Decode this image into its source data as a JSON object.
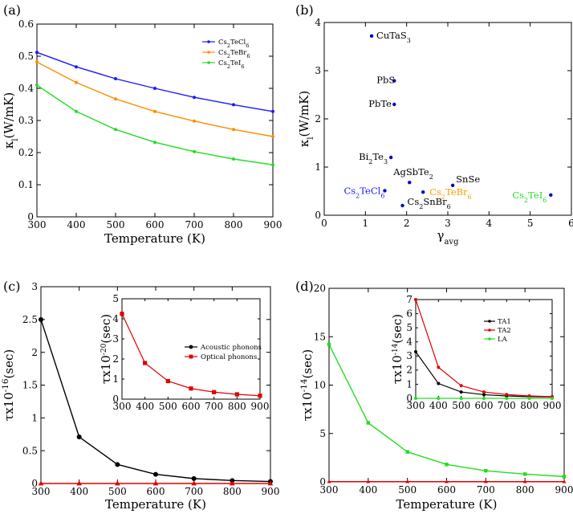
{
  "chart_data": [
    {
      "panel_label": "(a)",
      "type": "line",
      "xlabel": "Temperature (K)",
      "ylabel_main": "κ",
      "ylabel_sub": "l",
      "ylabel_rest": "(W/mK)",
      "xlim": [
        300,
        900
      ],
      "ylim": [
        0,
        0.6
      ],
      "xticks": [
        300,
        400,
        500,
        600,
        700,
        800,
        900
      ],
      "yticks": [
        0,
        0.1,
        0.2,
        0.3,
        0.4,
        0.5,
        0.6
      ],
      "x": [
        300,
        400,
        500,
        600,
        700,
        800,
        900
      ],
      "series": [
        {
          "name_main": "Cs",
          "name_sub1": "2",
          "name_mid": "TeCl",
          "name_sub2": "6",
          "color": "#1a1aff",
          "values": [
            0.512,
            0.467,
            0.43,
            0.4,
            0.372,
            0.349,
            0.328
          ]
        },
        {
          "name_main": "Cs",
          "name_sub1": "2",
          "name_mid": "TeBr",
          "name_sub2": "6",
          "color": "#ff8c00",
          "values": [
            0.482,
            0.418,
            0.367,
            0.328,
            0.298,
            0.272,
            0.25
          ]
        },
        {
          "name_main": "Cs",
          "name_sub1": "2",
          "name_mid": "TeI",
          "name_sub2": "6",
          "color": "#22dd22",
          "values": [
            0.41,
            0.328,
            0.272,
            0.232,
            0.203,
            0.18,
            0.162
          ]
        }
      ]
    },
    {
      "panel_label": "(b)",
      "type": "scatter",
      "xlabel_main": "γ",
      "xlabel_sub": "avg",
      "ylabel_main": "κ",
      "ylabel_sub": "l",
      "ylabel_rest": "(W/mK)",
      "xlim": [
        0,
        6
      ],
      "ylim": [
        0,
        4
      ],
      "xticks": [
        0,
        1,
        2,
        3,
        4,
        5,
        6
      ],
      "yticks": [
        0,
        1,
        2,
        3,
        4
      ],
      "points": [
        {
          "x": 1.15,
          "y": 3.72,
          "color": "#0000cc",
          "parts": [
            [
              "CuTaS",
              ""
            ],
            [
              "3",
              "sub"
            ]
          ],
          "label_color": "#000000"
        },
        {
          "x": 1.7,
          "y": 2.79,
          "color": "#0000cc",
          "parts": [
            [
              "PbS",
              ""
            ]
          ],
          "label_color": "#000000"
        },
        {
          "x": 1.7,
          "y": 2.3,
          "color": "#0000cc",
          "parts": [
            [
              "PbTe",
              ""
            ]
          ],
          "label_color": "#000000"
        },
        {
          "x": 1.62,
          "y": 1.2,
          "color": "#0000cc",
          "parts": [
            [
              "Bi",
              ""
            ],
            [
              "2",
              "sub"
            ],
            [
              "Te",
              ""
            ],
            [
              "3",
              "sub"
            ]
          ],
          "label_color": "#000000"
        },
        {
          "x": 2.07,
          "y": 0.68,
          "color": "#0000cc",
          "parts": [
            [
              "AgSbTe",
              ""
            ],
            [
              "2",
              "sub"
            ]
          ],
          "label_color": "#000000"
        },
        {
          "x": 3.12,
          "y": 0.62,
          "color": "#0000cc",
          "parts": [
            [
              "SnSe",
              ""
            ]
          ],
          "label_color": "#000000"
        },
        {
          "x": 1.47,
          "y": 0.51,
          "color": "#0000cc",
          "parts": [
            [
              "Cs",
              ""
            ],
            [
              "2",
              "sub"
            ],
            [
              "TeCl",
              ""
            ],
            [
              "6",
              "sub"
            ]
          ],
          "label_color": "#1a1aff"
        },
        {
          "x": 2.4,
          "y": 0.48,
          "color": "#0000cc",
          "parts": [
            [
              "Cs",
              ""
            ],
            [
              "2",
              "sub"
            ],
            [
              "TeBr",
              ""
            ],
            [
              "6",
              "sub"
            ]
          ],
          "label_color": "#ff9900"
        },
        {
          "x": 1.9,
          "y": 0.2,
          "color": "#0000cc",
          "parts": [
            [
              "Cs",
              ""
            ],
            [
              "2",
              "sub"
            ],
            [
              "SnBr",
              ""
            ],
            [
              "6",
              "sub"
            ]
          ],
          "label_color": "#000000"
        },
        {
          "x": 5.5,
          "y": 0.42,
          "color": "#0000cc",
          "parts": [
            [
              "Cs",
              ""
            ],
            [
              "2",
              "sub"
            ],
            [
              "TeI",
              ""
            ],
            [
              "6",
              "sub"
            ]
          ],
          "label_color": "#22dd22"
        }
      ]
    },
    {
      "panel_label": "(c)",
      "type": "line",
      "xlabel": "Temperature (K)",
      "ylabel_main": "τx10",
      "ylabel_sup": "-16",
      "ylabel_rest": "(sec)",
      "xlim": [
        300,
        900
      ],
      "ylim": [
        0,
        3
      ],
      "xticks": [
        300,
        400,
        500,
        600,
        700,
        800,
        900
      ],
      "yticks": [
        0,
        0.5,
        1,
        1.5,
        2,
        2.5,
        3
      ],
      "x": [
        300,
        400,
        500,
        600,
        700,
        800,
        900
      ],
      "series": [
        {
          "name": "Acoustic phonons",
          "color": "#000000",
          "marker": "circle",
          "values": [
            2.5,
            0.71,
            0.29,
            0.14,
            0.075,
            0.045,
            0.03
          ]
        },
        {
          "name": "Optical phonons",
          "color": "#e00000",
          "marker": "triangle",
          "values": [
            0.0,
            0.0,
            0.0,
            0.0,
            0.0,
            0.0,
            0.0
          ]
        }
      ],
      "inset": {
        "ylabel_main": "τx10",
        "ylabel_sup": "-20",
        "ylabel_rest": "(sec)",
        "xlim": [
          300,
          900
        ],
        "ylim": [
          0,
          5
        ],
        "xticks": [
          300,
          400,
          500,
          600,
          700,
          800,
          900
        ],
        "yticks": [
          0,
          1,
          2,
          3,
          4,
          5
        ],
        "x": [
          300,
          400,
          500,
          600,
          700,
          800,
          900
        ],
        "series": [
          {
            "name": "Acoustic phonons",
            "color": "#000000",
            "marker": "circle",
            "show_line": false,
            "values": []
          },
          {
            "name": "Optical phonons",
            "color": "#e00000",
            "marker": "square",
            "values": [
              4.25,
              1.8,
              0.9,
              0.53,
              0.35,
              0.24,
              0.17
            ]
          }
        ]
      }
    },
    {
      "panel_label": "(d)",
      "type": "line",
      "xlabel": "Temperature (K)",
      "ylabel_main": "τx10",
      "ylabel_sup": "-14",
      "ylabel_rest": "(sec)",
      "xlim": [
        300,
        900
      ],
      "ylim": [
        0,
        20
      ],
      "xticks": [
        300,
        400,
        500,
        600,
        700,
        800,
        900
      ],
      "yticks": [
        0,
        5,
        10,
        15,
        20
      ],
      "x": [
        300,
        400,
        500,
        600,
        700,
        800,
        900
      ],
      "series": [
        {
          "name": "LA",
          "color": "#22dd22",
          "marker": "square",
          "values": [
            14.2,
            6.1,
            3.1,
            1.8,
            1.15,
            0.8,
            0.55
          ]
        },
        {
          "name": "TA",
          "color": "#e00000",
          "marker": "triangle",
          "values": [
            0.02,
            0.02,
            0.02,
            0.02,
            0.02,
            0.02,
            0.02
          ]
        }
      ],
      "inset": {
        "ylabel_main": "τx10",
        "ylabel_sup": "-14",
        "ylabel_rest": "(sec)",
        "xlim": [
          300,
          900
        ],
        "ylim": [
          0,
          7
        ],
        "xticks": [
          300,
          400,
          500,
          600,
          700,
          800,
          900
        ],
        "yticks": [
          0,
          1,
          2,
          3,
          4,
          5,
          6,
          7
        ],
        "x": [
          300,
          400,
          500,
          600,
          700,
          800,
          900
        ],
        "series": [
          {
            "name": "TA1",
            "color": "#000000",
            "marker": "circle",
            "values": [
              3.3,
              1.05,
              0.45,
              0.26,
              0.17,
              0.12,
              0.1
            ]
          },
          {
            "name": "TA2",
            "color": "#e00000",
            "marker": "circle",
            "values": [
              7.0,
              2.2,
              0.9,
              0.45,
              0.27,
              0.17,
              0.12
            ]
          },
          {
            "name": "LA",
            "color": "#22dd22",
            "marker": "circle",
            "values": [
              0.0,
              0.0,
              0.0,
              0.0,
              0.0,
              0.0,
              0.0
            ]
          }
        ]
      }
    }
  ]
}
